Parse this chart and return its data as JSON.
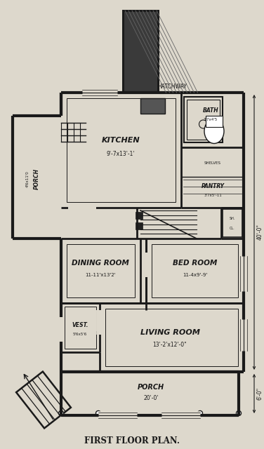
{
  "bg_color": "#ddd8cc",
  "wall_color": "#1a1a1a",
  "title": "FIRST FLOOR PLAN.",
  "title_fontsize": 8.5,
  "dim_40": "40'-0\"",
  "dim_6": "6'-0\"",
  "figsize": [
    3.76,
    6.4
  ],
  "dpi": 100
}
